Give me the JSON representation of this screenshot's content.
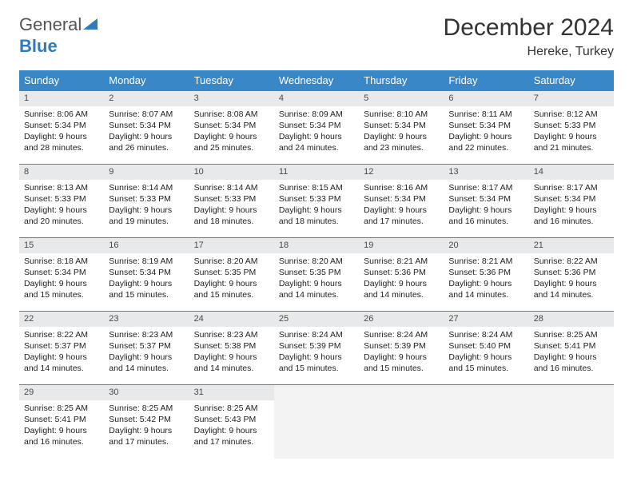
{
  "brand": {
    "name_a": "General",
    "name_b": "Blue"
  },
  "title": {
    "month": "December 2024",
    "location": "Hereke, Turkey"
  },
  "colors": {
    "header_bg": "#3a87c8",
    "header_fg": "#ffffff",
    "daynum_bg": "#e7e9eb",
    "rule": "#3a87c8",
    "empty_bg": "#f3f3f3",
    "text": "#222222",
    "logo_gray": "#555555",
    "logo_blue": "#2f7bbf"
  },
  "structure": {
    "type": "table",
    "columns": 7,
    "rows": 5,
    "cell_font_size_pt": 8,
    "header_font_size_pt": 10,
    "title_font_size_pt": 22
  },
  "day_labels": [
    "Sunday",
    "Monday",
    "Tuesday",
    "Wednesday",
    "Thursday",
    "Friday",
    "Saturday"
  ],
  "weeks": [
    [
      {
        "n": "1",
        "sr": "8:06 AM",
        "ss": "5:34 PM",
        "dl": "9 hours and 28 minutes."
      },
      {
        "n": "2",
        "sr": "8:07 AM",
        "ss": "5:34 PM",
        "dl": "9 hours and 26 minutes."
      },
      {
        "n": "3",
        "sr": "8:08 AM",
        "ss": "5:34 PM",
        "dl": "9 hours and 25 minutes."
      },
      {
        "n": "4",
        "sr": "8:09 AM",
        "ss": "5:34 PM",
        "dl": "9 hours and 24 minutes."
      },
      {
        "n": "5",
        "sr": "8:10 AM",
        "ss": "5:34 PM",
        "dl": "9 hours and 23 minutes."
      },
      {
        "n": "6",
        "sr": "8:11 AM",
        "ss": "5:34 PM",
        "dl": "9 hours and 22 minutes."
      },
      {
        "n": "7",
        "sr": "8:12 AM",
        "ss": "5:33 PM",
        "dl": "9 hours and 21 minutes."
      }
    ],
    [
      {
        "n": "8",
        "sr": "8:13 AM",
        "ss": "5:33 PM",
        "dl": "9 hours and 20 minutes."
      },
      {
        "n": "9",
        "sr": "8:14 AM",
        "ss": "5:33 PM",
        "dl": "9 hours and 19 minutes."
      },
      {
        "n": "10",
        "sr": "8:14 AM",
        "ss": "5:33 PM",
        "dl": "9 hours and 18 minutes."
      },
      {
        "n": "11",
        "sr": "8:15 AM",
        "ss": "5:33 PM",
        "dl": "9 hours and 18 minutes."
      },
      {
        "n": "12",
        "sr": "8:16 AM",
        "ss": "5:34 PM",
        "dl": "9 hours and 17 minutes."
      },
      {
        "n": "13",
        "sr": "8:17 AM",
        "ss": "5:34 PM",
        "dl": "9 hours and 16 minutes."
      },
      {
        "n": "14",
        "sr": "8:17 AM",
        "ss": "5:34 PM",
        "dl": "9 hours and 16 minutes."
      }
    ],
    [
      {
        "n": "15",
        "sr": "8:18 AM",
        "ss": "5:34 PM",
        "dl": "9 hours and 15 minutes."
      },
      {
        "n": "16",
        "sr": "8:19 AM",
        "ss": "5:34 PM",
        "dl": "9 hours and 15 minutes."
      },
      {
        "n": "17",
        "sr": "8:20 AM",
        "ss": "5:35 PM",
        "dl": "9 hours and 15 minutes."
      },
      {
        "n": "18",
        "sr": "8:20 AM",
        "ss": "5:35 PM",
        "dl": "9 hours and 14 minutes."
      },
      {
        "n": "19",
        "sr": "8:21 AM",
        "ss": "5:36 PM",
        "dl": "9 hours and 14 minutes."
      },
      {
        "n": "20",
        "sr": "8:21 AM",
        "ss": "5:36 PM",
        "dl": "9 hours and 14 minutes."
      },
      {
        "n": "21",
        "sr": "8:22 AM",
        "ss": "5:36 PM",
        "dl": "9 hours and 14 minutes."
      }
    ],
    [
      {
        "n": "22",
        "sr": "8:22 AM",
        "ss": "5:37 PM",
        "dl": "9 hours and 14 minutes."
      },
      {
        "n": "23",
        "sr": "8:23 AM",
        "ss": "5:37 PM",
        "dl": "9 hours and 14 minutes."
      },
      {
        "n": "24",
        "sr": "8:23 AM",
        "ss": "5:38 PM",
        "dl": "9 hours and 14 minutes."
      },
      {
        "n": "25",
        "sr": "8:24 AM",
        "ss": "5:39 PM",
        "dl": "9 hours and 15 minutes."
      },
      {
        "n": "26",
        "sr": "8:24 AM",
        "ss": "5:39 PM",
        "dl": "9 hours and 15 minutes."
      },
      {
        "n": "27",
        "sr": "8:24 AM",
        "ss": "5:40 PM",
        "dl": "9 hours and 15 minutes."
      },
      {
        "n": "28",
        "sr": "8:25 AM",
        "ss": "5:41 PM",
        "dl": "9 hours and 16 minutes."
      }
    ],
    [
      {
        "n": "29",
        "sr": "8:25 AM",
        "ss": "5:41 PM",
        "dl": "9 hours and 16 minutes."
      },
      {
        "n": "30",
        "sr": "8:25 AM",
        "ss": "5:42 PM",
        "dl": "9 hours and 17 minutes."
      },
      {
        "n": "31",
        "sr": "8:25 AM",
        "ss": "5:43 PM",
        "dl": "9 hours and 17 minutes."
      },
      null,
      null,
      null,
      null
    ]
  ],
  "labels": {
    "sunrise": "Sunrise:",
    "sunset": "Sunset:",
    "daylight": "Daylight:"
  }
}
